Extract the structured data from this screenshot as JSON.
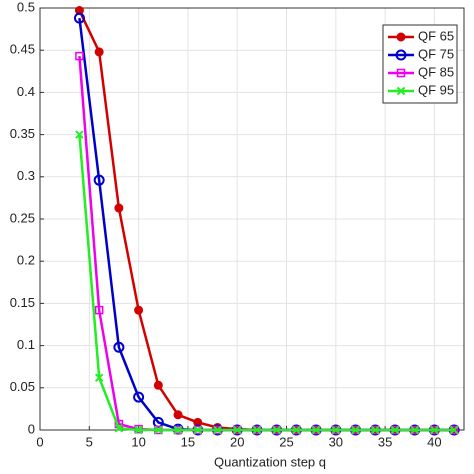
{
  "chart_data": {
    "type": "line",
    "xlabel": "Quantization step q",
    "x": [
      4,
      6,
      8,
      10,
      12,
      14,
      16,
      18,
      20,
      22,
      24,
      26,
      28,
      30,
      32,
      34,
      36,
      38,
      40,
      42
    ],
    "series": [
      {
        "name": "QF 65",
        "color": "#d40000",
        "marker": "filled-circle",
        "values": [
          0.497,
          0.448,
          0.263,
          0.142,
          0.053,
          0.018,
          0.009,
          0.003,
          0.001,
          0,
          0,
          0,
          0,
          0,
          0,
          0,
          0,
          0,
          0,
          0
        ]
      },
      {
        "name": "QF 75",
        "color": "#0000cc",
        "marker": "open-circle",
        "values": [
          0.488,
          0.296,
          0.098,
          0.039,
          0.009,
          0.001,
          0,
          0,
          0,
          0,
          0,
          0,
          0,
          0,
          0,
          0,
          0,
          0,
          0,
          0
        ]
      },
      {
        "name": "QF 85",
        "color": "#ee00ee",
        "marker": "square",
        "values": [
          0.443,
          0.142,
          0.007,
          0.001,
          0,
          0,
          0,
          0,
          0,
          0,
          0,
          0,
          0,
          0,
          0,
          0,
          0,
          0,
          0,
          0
        ]
      },
      {
        "name": "QF 95",
        "color": "#22ee22",
        "marker": "x",
        "values": [
          0.35,
          0.062,
          0.002,
          0,
          0,
          0,
          0,
          0,
          0,
          0,
          0,
          0,
          0,
          0,
          0,
          0,
          0,
          0,
          0,
          0
        ]
      }
    ],
    "xlim": [
      0,
      43
    ],
    "xticks": [
      0,
      5,
      10,
      15,
      20,
      25,
      30,
      35,
      40
    ],
    "ylim": [
      0,
      0.5
    ],
    "yticks": [
      0,
      0.05,
      0.1,
      0.15,
      0.2,
      0.25,
      0.3,
      0.35,
      0.4,
      0.45,
      0.5
    ],
    "grid": true,
    "legend": "upper right"
  }
}
